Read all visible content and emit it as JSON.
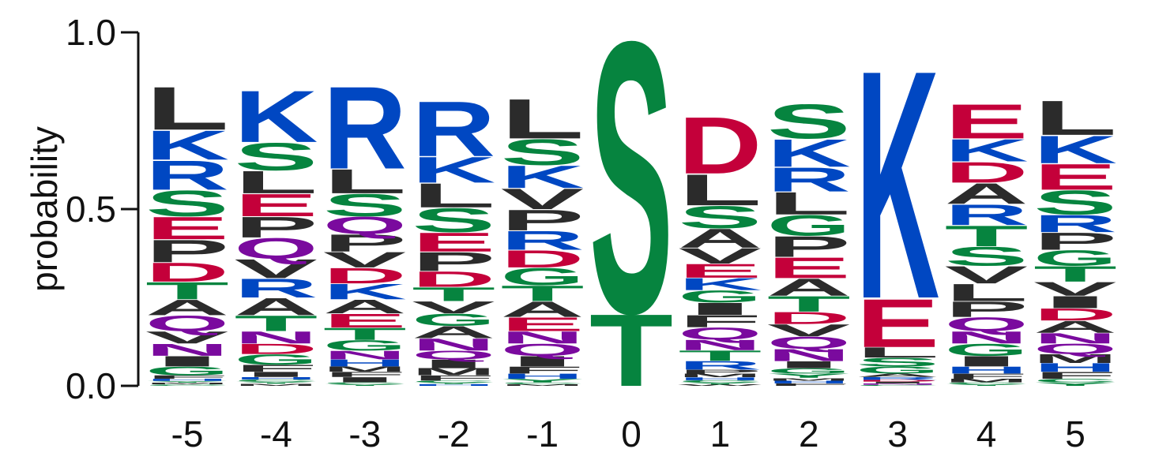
{
  "chart_data": {
    "type": "sequence-logo",
    "title": "",
    "xlabel": "",
    "ylabel": "probability",
    "ylim": [
      0,
      1
    ],
    "yticks": [
      "0.0",
      "0.5",
      "1.0"
    ],
    "categories": [
      "-5",
      "-4",
      "-3",
      "-2",
      "-1",
      "0",
      "1",
      "2",
      "3",
      "4",
      "5"
    ],
    "colors": {
      "hydrophobic": "#2b2b2b",
      "basic": "#0047c2",
      "acidic": "#c4003a",
      "polar": "#06843f",
      "amide": "#7a0a9e"
    },
    "residue_classes": {
      "A": "hydrophobic",
      "V": "hydrophobic",
      "L": "hydrophobic",
      "I": "hydrophobic",
      "P": "hydrophobic",
      "F": "hydrophobic",
      "M": "hydrophobic",
      "W": "hydrophobic",
      "K": "basic",
      "R": "basic",
      "H": "basic",
      "D": "acidic",
      "E": "acidic",
      "S": "polar",
      "T": "polar",
      "G": "polar",
      "Y": "polar",
      "C": "polar",
      "N": "amide",
      "Q": "amide"
    },
    "positions": [
      {
        "position": "-5",
        "residues": [
          {
            "letter": "L",
            "p": 0.125
          },
          {
            "letter": "P",
            "p": 0.065
          },
          {
            "letter": "R",
            "p": 0.085
          },
          {
            "letter": "S",
            "p": 0.075
          },
          {
            "letter": "K",
            "p": 0.085
          },
          {
            "letter": "E",
            "p": 0.065
          },
          {
            "letter": "T",
            "p": 0.05
          },
          {
            "letter": "D",
            "p": 0.055
          },
          {
            "letter": "Q",
            "p": 0.045
          },
          {
            "letter": "A",
            "p": 0.045
          },
          {
            "letter": "N",
            "p": 0.035
          },
          {
            "letter": "V",
            "p": 0.035
          },
          {
            "letter": "I",
            "p": 0.03
          },
          {
            "letter": "G",
            "p": 0.025
          },
          {
            "letter": "F",
            "p": 0.01
          },
          {
            "letter": "H",
            "p": 0.006
          },
          {
            "letter": "M",
            "p": 0.005
          },
          {
            "letter": "Y",
            "p": 0.005
          },
          {
            "letter": "C",
            "p": 0.004
          }
        ]
      },
      {
        "position": "-4",
        "residues": [
          {
            "letter": "K",
            "p": 0.15
          },
          {
            "letter": "S",
            "p": 0.08
          },
          {
            "letter": "E",
            "p": 0.065
          },
          {
            "letter": "L",
            "p": 0.065
          },
          {
            "letter": "Q",
            "p": 0.06
          },
          {
            "letter": "A",
            "p": 0.05
          },
          {
            "letter": "P",
            "p": 0.06
          },
          {
            "letter": "R",
            "p": 0.055
          },
          {
            "letter": "V",
            "p": 0.055
          },
          {
            "letter": "T",
            "p": 0.045
          },
          {
            "letter": "N",
            "p": 0.035
          },
          {
            "letter": "G",
            "p": 0.03
          },
          {
            "letter": "D",
            "p": 0.03
          },
          {
            "letter": "F",
            "p": 0.02
          },
          {
            "letter": "I",
            "p": 0.015
          },
          {
            "letter": "H",
            "p": 0.007
          },
          {
            "letter": "M",
            "p": 0.006
          },
          {
            "letter": "Y",
            "p": 0.006
          },
          {
            "letter": "C",
            "p": 0.006
          }
        ]
      },
      {
        "position": "-3",
        "residues": [
          {
            "letter": "R",
            "p": 0.24
          },
          {
            "letter": "L",
            "p": 0.07
          },
          {
            "letter": "S",
            "p": 0.065
          },
          {
            "letter": "P",
            "p": 0.05
          },
          {
            "letter": "Q",
            "p": 0.05
          },
          {
            "letter": "E",
            "p": 0.04
          },
          {
            "letter": "K",
            "p": 0.045
          },
          {
            "letter": "D",
            "p": 0.045
          },
          {
            "letter": "V",
            "p": 0.045
          },
          {
            "letter": "A",
            "p": 0.04
          },
          {
            "letter": "T",
            "p": 0.035
          },
          {
            "letter": "G",
            "p": 0.03
          },
          {
            "letter": "N",
            "p": 0.025
          },
          {
            "letter": "H",
            "p": 0.02
          },
          {
            "letter": "I",
            "p": 0.015
          },
          {
            "letter": "F",
            "p": 0.015
          },
          {
            "letter": "M",
            "p": 0.015
          },
          {
            "letter": "Y",
            "p": 0.005
          },
          {
            "letter": "C",
            "p": 0.005
          }
        ]
      },
      {
        "position": "-2",
        "residues": [
          {
            "letter": "R",
            "p": 0.16
          },
          {
            "letter": "S",
            "p": 0.07
          },
          {
            "letter": "L",
            "p": 0.07
          },
          {
            "letter": "K",
            "p": 0.075
          },
          {
            "letter": "P",
            "p": 0.055
          },
          {
            "letter": "E",
            "p": 0.055
          },
          {
            "letter": "T",
            "p": 0.04
          },
          {
            "letter": "D",
            "p": 0.045
          },
          {
            "letter": "N",
            "p": 0.035
          },
          {
            "letter": "A",
            "p": 0.035
          },
          {
            "letter": "G",
            "p": 0.035
          },
          {
            "letter": "V",
            "p": 0.035
          },
          {
            "letter": "I",
            "p": 0.025
          },
          {
            "letter": "Q",
            "p": 0.025
          },
          {
            "letter": "M",
            "p": 0.02
          },
          {
            "letter": "F",
            "p": 0.015
          },
          {
            "letter": "H",
            "p": 0.005
          },
          {
            "letter": "Y",
            "p": 0.005
          },
          {
            "letter": "C",
            "p": 0.005
          }
        ]
      },
      {
        "position": "-1",
        "residues": [
          {
            "letter": "L",
            "p": 0.115
          },
          {
            "letter": "S",
            "p": 0.075
          },
          {
            "letter": "P",
            "p": 0.06
          },
          {
            "letter": "K",
            "p": 0.065
          },
          {
            "letter": "V",
            "p": 0.06
          },
          {
            "letter": "G",
            "p": 0.05
          },
          {
            "letter": "R",
            "p": 0.055
          },
          {
            "letter": "A",
            "p": 0.045
          },
          {
            "letter": "D",
            "p": 0.05
          },
          {
            "letter": "E",
            "p": 0.04
          },
          {
            "letter": "T",
            "p": 0.045
          },
          {
            "letter": "I",
            "p": 0.03
          },
          {
            "letter": "Q",
            "p": 0.035
          },
          {
            "letter": "N",
            "p": 0.035
          },
          {
            "letter": "F",
            "p": 0.02
          },
          {
            "letter": "H",
            "p": 0.015
          },
          {
            "letter": "Y",
            "p": 0.01
          },
          {
            "letter": "M",
            "p": 0.005
          },
          {
            "letter": "C",
            "p": 0.005
          }
        ]
      },
      {
        "position": "0",
        "residues": [
          {
            "letter": "S",
            "p": 0.79
          },
          {
            "letter": "T",
            "p": 0.21
          }
        ]
      },
      {
        "position": "1",
        "residues": [
          {
            "letter": "D",
            "p": 0.165
          },
          {
            "letter": "L",
            "p": 0.09
          },
          {
            "letter": "S",
            "p": 0.065
          },
          {
            "letter": "A",
            "p": 0.055
          },
          {
            "letter": "V",
            "p": 0.045
          },
          {
            "letter": "E",
            "p": 0.04
          },
          {
            "letter": "Q",
            "p": 0.035
          },
          {
            "letter": "F",
            "p": 0.035
          },
          {
            "letter": "I",
            "p": 0.035
          },
          {
            "letter": "G",
            "p": 0.035
          },
          {
            "letter": "K",
            "p": 0.035
          },
          {
            "letter": "R",
            "p": 0.025
          },
          {
            "letter": "T",
            "p": 0.03
          },
          {
            "letter": "N",
            "p": 0.03
          },
          {
            "letter": "P",
            "p": 0.012
          },
          {
            "letter": "M",
            "p": 0.01
          },
          {
            "letter": "H",
            "p": 0.008
          },
          {
            "letter": "Y",
            "p": 0.006
          },
          {
            "letter": "C",
            "p": 0.006
          },
          {
            "letter": "W",
            "p": 0.004
          }
        ]
      },
      {
        "position": "2",
        "residues": [
          {
            "letter": "S",
            "p": 0.1
          },
          {
            "letter": "K",
            "p": 0.08
          },
          {
            "letter": "E",
            "p": 0.06
          },
          {
            "letter": "P",
            "p": 0.06
          },
          {
            "letter": "R",
            "p": 0.07
          },
          {
            "letter": "L",
            "p": 0.065
          },
          {
            "letter": "G",
            "p": 0.06
          },
          {
            "letter": "T",
            "p": 0.045
          },
          {
            "letter": "A",
            "p": 0.05
          },
          {
            "letter": "N",
            "p": 0.035
          },
          {
            "letter": "Q",
            "p": 0.035
          },
          {
            "letter": "V",
            "p": 0.035
          },
          {
            "letter": "D",
            "p": 0.035
          },
          {
            "letter": "I",
            "p": 0.02
          },
          {
            "letter": "G",
            "p": 0.015
          },
          {
            "letter": "Y",
            "p": 0.012
          },
          {
            "letter": "H",
            "p": 0.008
          },
          {
            "letter": "M",
            "p": 0.008
          },
          {
            "letter": "F",
            "p": 0.007
          }
        ]
      },
      {
        "position": "3",
        "residues": [
          {
            "letter": "K",
            "p": 0.665
          },
          {
            "letter": "E",
            "p": 0.14
          },
          {
            "letter": "L",
            "p": 0.03
          },
          {
            "letter": "S",
            "p": 0.025
          },
          {
            "letter": "G",
            "p": 0.02
          },
          {
            "letter": "A",
            "p": 0.01
          },
          {
            "letter": "R",
            "p": 0.008
          },
          {
            "letter": "I",
            "p": 0.005
          },
          {
            "letter": "D",
            "p": 0.005
          },
          {
            "letter": "N",
            "p": 0.004
          },
          {
            "letter": "C",
            "p": 0.003
          }
        ]
      },
      {
        "position": "4",
        "residues": [
          {
            "letter": "E",
            "p": 0.1
          },
          {
            "letter": "K",
            "p": 0.065
          },
          {
            "letter": "T",
            "p": 0.06
          },
          {
            "letter": "R",
            "p": 0.06
          },
          {
            "letter": "A",
            "p": 0.06
          },
          {
            "letter": "S",
            "p": 0.055
          },
          {
            "letter": "D",
            "p": 0.06
          },
          {
            "letter": "L",
            "p": 0.05
          },
          {
            "letter": "P",
            "p": 0.045
          },
          {
            "letter": "V",
            "p": 0.05
          },
          {
            "letter": "Q",
            "p": 0.04
          },
          {
            "letter": "G",
            "p": 0.035
          },
          {
            "letter": "N",
            "p": 0.035
          },
          {
            "letter": "I",
            "p": 0.03
          },
          {
            "letter": "H",
            "p": 0.02
          },
          {
            "letter": "F",
            "p": 0.015
          },
          {
            "letter": "M",
            "p": 0.01
          },
          {
            "letter": "Y",
            "p": 0.005
          },
          {
            "letter": "C",
            "p": 0.005
          }
        ]
      },
      {
        "position": "5",
        "residues": [
          {
            "letter": "L",
            "p": 0.1
          },
          {
            "letter": "K",
            "p": 0.08
          },
          {
            "letter": "E",
            "p": 0.075
          },
          {
            "letter": "S",
            "p": 0.07
          },
          {
            "letter": "P",
            "p": 0.05
          },
          {
            "letter": "T",
            "p": 0.045
          },
          {
            "letter": "R",
            "p": 0.05
          },
          {
            "letter": "G",
            "p": 0.045
          },
          {
            "letter": "V",
            "p": 0.04
          },
          {
            "letter": "A",
            "p": 0.035
          },
          {
            "letter": "D",
            "p": 0.035
          },
          {
            "letter": "I",
            "p": 0.035
          },
          {
            "letter": "Q",
            "p": 0.03
          },
          {
            "letter": "N",
            "p": 0.03
          },
          {
            "letter": "H",
            "p": 0.025
          },
          {
            "letter": "F",
            "p": 0.02
          },
          {
            "letter": "M",
            "p": 0.025
          },
          {
            "letter": "Y",
            "p": 0.01
          },
          {
            "letter": "C",
            "p": 0.01
          }
        ]
      }
    ]
  }
}
